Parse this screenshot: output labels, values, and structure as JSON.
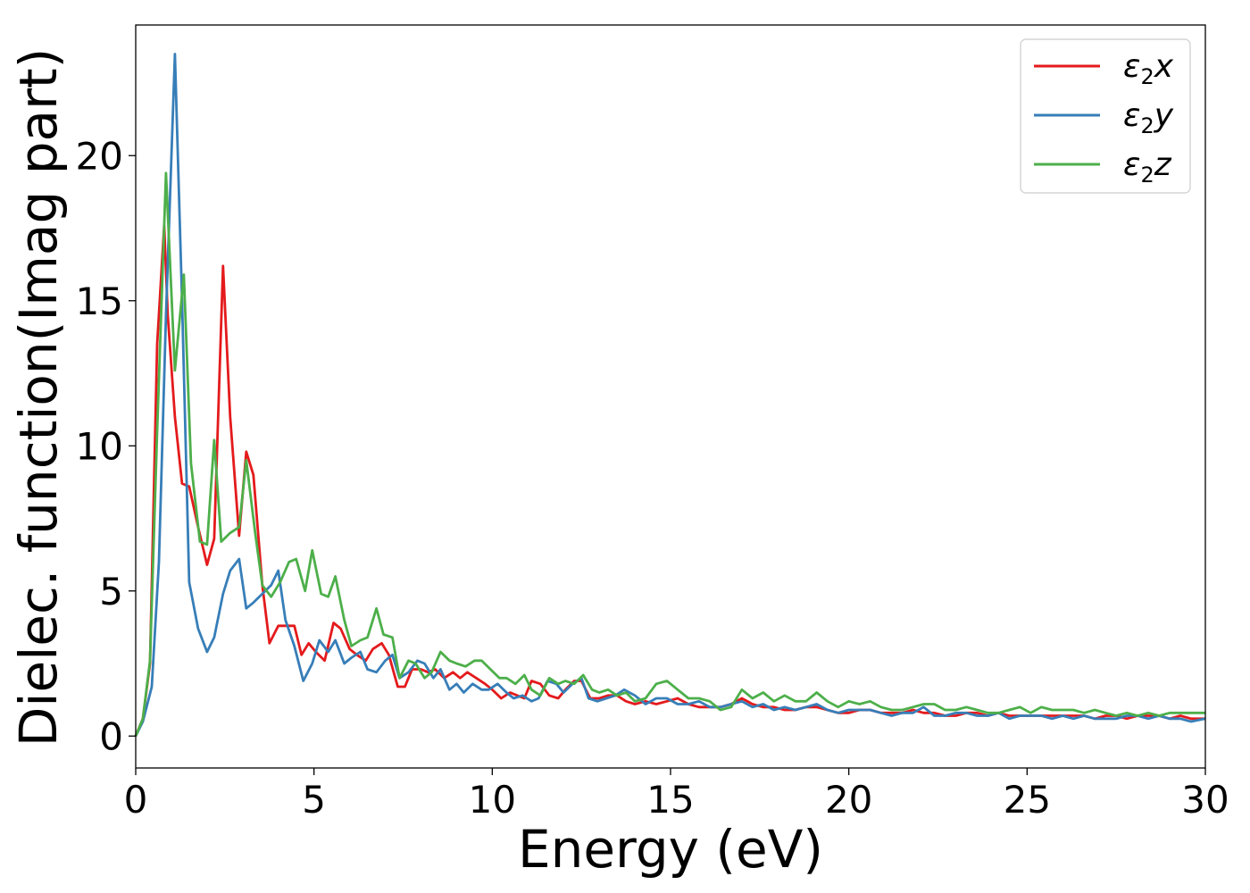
{
  "chart_data": {
    "type": "line",
    "title": "",
    "xlabel": "Energy (eV)",
    "ylabel": "Dielec. function(Imag part)",
    "xlim": [
      0,
      30
    ],
    "ylim": [
      -1.1,
      24.5
    ],
    "xticks": [
      0,
      5,
      10,
      15,
      20,
      25,
      30
    ],
    "yticks": [
      0,
      5,
      10,
      15,
      20
    ],
    "grid": false,
    "legend_position": "top-right",
    "series": [
      {
        "name": "ε₂x",
        "legend_main": "ε",
        "legend_sub": "2",
        "legend_suffix": "x",
        "color": "#e41a1c",
        "x": [
          0,
          0.2,
          0.4,
          0.6,
          0.8,
          0.9,
          1.1,
          1.3,
          1.5,
          1.75,
          2.0,
          2.2,
          2.45,
          2.65,
          2.9,
          3.1,
          3.3,
          3.55,
          3.75,
          4.0,
          4.2,
          4.45,
          4.65,
          4.85,
          5.05,
          5.3,
          5.55,
          5.75,
          6.0,
          6.2,
          6.45,
          6.65,
          6.9,
          7.1,
          7.35,
          7.55,
          7.75,
          8.0,
          8.2,
          8.4,
          8.65,
          8.9,
          9.1,
          9.3,
          9.55,
          9.8,
          10.0,
          10.25,
          10.5,
          10.7,
          10.9,
          11.1,
          11.35,
          11.6,
          11.85,
          12.05,
          12.3,
          12.5,
          12.75,
          13.0,
          13.25,
          13.5,
          13.75,
          14.0,
          14.3,
          14.6,
          14.9,
          15.2,
          15.5,
          15.8,
          16.1,
          16.4,
          16.7,
          17.0,
          17.3,
          17.6,
          17.9,
          18.2,
          18.5,
          18.8,
          19.1,
          19.4,
          19.7,
          20.0,
          20.3,
          20.6,
          20.9,
          21.2,
          21.5,
          21.8,
          22.1,
          22.4,
          22.7,
          23.0,
          23.3,
          23.6,
          23.9,
          24.2,
          24.5,
          24.8,
          25.1,
          25.4,
          25.7,
          26.0,
          26.3,
          26.6,
          26.9,
          27.2,
          27.5,
          27.8,
          28.1,
          28.4,
          28.7,
          29.0,
          29.3,
          29.6,
          30.0
        ],
        "y": [
          0,
          0.6,
          2.5,
          13.5,
          17.6,
          14.5,
          11.0,
          8.7,
          8.6,
          7.2,
          5.9,
          6.8,
          16.2,
          11.0,
          6.9,
          9.8,
          9.0,
          5.2,
          3.2,
          3.8,
          3.8,
          3.8,
          2.8,
          3.2,
          2.9,
          2.6,
          3.9,
          3.7,
          3.0,
          2.8,
          2.6,
          3.0,
          3.2,
          2.8,
          1.7,
          1.7,
          2.3,
          2.3,
          2.2,
          2.3,
          2.0,
          2.2,
          2.0,
          2.2,
          2.0,
          1.8,
          1.6,
          1.3,
          1.5,
          1.4,
          1.3,
          1.9,
          1.8,
          1.4,
          1.3,
          1.6,
          1.9,
          1.9,
          1.3,
          1.3,
          1.4,
          1.4,
          1.2,
          1.1,
          1.2,
          1.1,
          1.2,
          1.3,
          1.1,
          1.0,
          1.0,
          1.0,
          1.1,
          1.3,
          1.1,
          1.0,
          1.0,
          0.9,
          0.9,
          1.0,
          1.0,
          0.9,
          0.8,
          0.8,
          0.9,
          0.9,
          0.8,
          0.8,
          0.8,
          0.9,
          0.8,
          0.8,
          0.7,
          0.7,
          0.8,
          0.8,
          0.7,
          0.8,
          0.7,
          0.7,
          0.7,
          0.7,
          0.7,
          0.7,
          0.7,
          0.7,
          0.6,
          0.7,
          0.7,
          0.6,
          0.7,
          0.7,
          0.7,
          0.6,
          0.7,
          0.6,
          0.6
        ]
      },
      {
        "name": "ε₂y",
        "legend_main": "ε",
        "legend_sub": "2",
        "legend_suffix": "y",
        "color": "#377eb8",
        "x": [
          0,
          0.2,
          0.45,
          0.65,
          0.85,
          1.1,
          1.3,
          1.5,
          1.75,
          2.0,
          2.2,
          2.45,
          2.65,
          2.9,
          3.1,
          3.3,
          3.55,
          3.8,
          4.0,
          4.2,
          4.45,
          4.7,
          4.95,
          5.15,
          5.4,
          5.6,
          5.85,
          6.05,
          6.3,
          6.5,
          6.75,
          7.0,
          7.2,
          7.4,
          7.65,
          7.9,
          8.1,
          8.35,
          8.55,
          8.8,
          9.0,
          9.2,
          9.45,
          9.7,
          9.9,
          10.15,
          10.4,
          10.6,
          10.85,
          11.1,
          11.3,
          11.55,
          11.8,
          12.0,
          12.25,
          12.5,
          12.7,
          12.95,
          13.2,
          13.45,
          13.7,
          14.0,
          14.3,
          14.6,
          14.9,
          15.2,
          15.5,
          15.8,
          16.1,
          16.4,
          16.7,
          17.0,
          17.3,
          17.6,
          17.9,
          18.2,
          18.5,
          18.8,
          19.1,
          19.4,
          19.7,
          20.0,
          20.3,
          20.6,
          20.9,
          21.2,
          21.5,
          21.8,
          22.1,
          22.4,
          22.7,
          23.0,
          23.3,
          23.6,
          23.9,
          24.2,
          24.5,
          24.8,
          25.1,
          25.4,
          25.7,
          26.0,
          26.3,
          26.6,
          26.9,
          27.2,
          27.5,
          27.8,
          28.1,
          28.4,
          28.7,
          29.0,
          29.3,
          29.6,
          30.0
        ],
        "y": [
          0,
          0.5,
          1.7,
          6.0,
          14.5,
          23.5,
          15.0,
          5.3,
          3.7,
          2.9,
          3.4,
          4.9,
          5.7,
          6.1,
          4.4,
          4.6,
          4.9,
          5.2,
          5.7,
          4.0,
          3.1,
          1.9,
          2.5,
          3.3,
          2.9,
          3.3,
          2.5,
          2.7,
          2.9,
          2.3,
          2.2,
          2.6,
          2.8,
          2.0,
          2.2,
          2.6,
          2.5,
          2.0,
          2.3,
          1.6,
          1.8,
          1.5,
          1.8,
          1.6,
          1.6,
          1.8,
          1.5,
          1.3,
          1.4,
          1.2,
          1.3,
          1.9,
          1.8,
          1.5,
          1.8,
          2.0,
          1.3,
          1.2,
          1.3,
          1.4,
          1.6,
          1.4,
          1.1,
          1.3,
          1.3,
          1.1,
          1.1,
          1.2,
          1.0,
          1.0,
          1.1,
          1.2,
          1.0,
          1.1,
          0.9,
          1.0,
          0.9,
          1.0,
          1.1,
          0.9,
          0.8,
          0.9,
          0.9,
          0.9,
          0.8,
          0.7,
          0.8,
          0.8,
          1.0,
          0.7,
          0.7,
          0.8,
          0.8,
          0.7,
          0.7,
          0.8,
          0.6,
          0.7,
          0.7,
          0.7,
          0.6,
          0.7,
          0.6,
          0.7,
          0.6,
          0.6,
          0.6,
          0.7,
          0.7,
          0.6,
          0.7,
          0.6,
          0.6,
          0.5,
          0.6
        ]
      },
      {
        "name": "ε₂z",
        "legend_main": "ε",
        "legend_sub": "2",
        "legend_suffix": "z",
        "color": "#4daf4a",
        "x": [
          0,
          0.2,
          0.4,
          0.6,
          0.85,
          1.1,
          1.35,
          1.55,
          1.8,
          2.0,
          2.2,
          2.4,
          2.65,
          2.9,
          3.1,
          3.35,
          3.55,
          3.8,
          4.05,
          4.3,
          4.5,
          4.75,
          4.95,
          5.2,
          5.4,
          5.6,
          5.85,
          6.05,
          6.3,
          6.5,
          6.75,
          6.95,
          7.2,
          7.4,
          7.65,
          7.85,
          8.1,
          8.3,
          8.55,
          8.8,
          9.0,
          9.25,
          9.5,
          9.7,
          9.95,
          10.2,
          10.4,
          10.65,
          10.9,
          11.1,
          11.35,
          11.6,
          11.85,
          12.05,
          12.3,
          12.55,
          12.8,
          13.0,
          13.25,
          13.5,
          13.75,
          14.0,
          14.3,
          14.6,
          14.9,
          15.2,
          15.5,
          15.8,
          16.1,
          16.4,
          16.7,
          17.0,
          17.3,
          17.6,
          17.9,
          18.2,
          18.5,
          18.8,
          19.1,
          19.4,
          19.7,
          20.0,
          20.3,
          20.6,
          20.9,
          21.2,
          21.5,
          21.8,
          22.1,
          22.4,
          22.7,
          23.0,
          23.3,
          23.6,
          23.9,
          24.2,
          24.5,
          24.8,
          25.1,
          25.4,
          25.7,
          26.0,
          26.3,
          26.6,
          26.9,
          27.2,
          27.5,
          27.8,
          28.1,
          28.4,
          28.7,
          29.0,
          29.3,
          29.6,
          30.0
        ],
        "y": [
          0,
          0.6,
          2.6,
          10.5,
          19.4,
          12.6,
          15.9,
          9.4,
          6.7,
          6.6,
          10.2,
          6.7,
          7.0,
          7.2,
          9.5,
          7.0,
          5.2,
          4.8,
          5.3,
          6.0,
          6.1,
          5.0,
          6.4,
          4.9,
          4.8,
          5.5,
          4.0,
          3.1,
          3.3,
          3.4,
          4.4,
          3.5,
          3.4,
          2.0,
          2.6,
          2.5,
          2.0,
          2.2,
          2.9,
          2.6,
          2.5,
          2.4,
          2.6,
          2.6,
          2.3,
          2.0,
          2.0,
          1.8,
          2.1,
          1.6,
          1.4,
          2.0,
          1.8,
          1.9,
          1.8,
          2.1,
          1.6,
          1.5,
          1.6,
          1.4,
          1.5,
          1.2,
          1.3,
          1.8,
          1.9,
          1.6,
          1.3,
          1.3,
          1.2,
          0.9,
          1.0,
          1.6,
          1.3,
          1.5,
          1.2,
          1.4,
          1.2,
          1.2,
          1.5,
          1.2,
          1.0,
          1.2,
          1.1,
          1.2,
          1.0,
          0.9,
          0.9,
          1.0,
          1.1,
          1.1,
          0.9,
          0.9,
          1.0,
          0.9,
          0.8,
          0.8,
          0.9,
          1.0,
          0.8,
          1.0,
          0.9,
          0.9,
          0.9,
          0.8,
          0.9,
          0.8,
          0.7,
          0.8,
          0.7,
          0.8,
          0.7,
          0.8,
          0.8,
          0.8,
          0.8
        ]
      }
    ]
  }
}
